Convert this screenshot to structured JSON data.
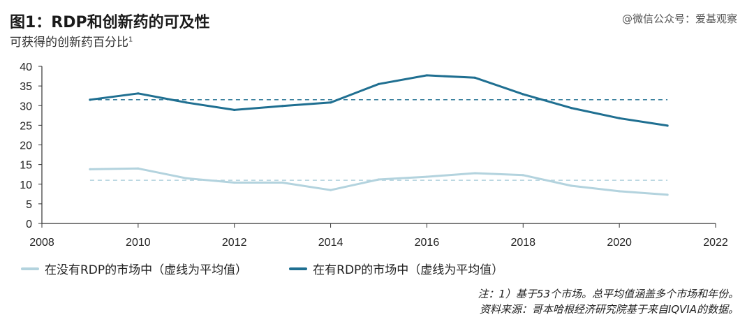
{
  "header": {
    "title": "图1：RDP和创新药的可及性",
    "subtitle": "可获得的创新药百分比",
    "subtitle_sup": "1",
    "watermark": "@微信公众号：爱基观察"
  },
  "notes": {
    "line1": "注：1）基于53个市场。总平均值涵盖多个市场和年份。",
    "line2": "资料来源：哥本哈根经济研究院基于来自IQVIA的数据。"
  },
  "chart_data": {
    "type": "line",
    "xlim": [
      2008,
      2022
    ],
    "ylim": [
      0,
      40
    ],
    "x_ticks": [
      2008,
      2010,
      2012,
      2014,
      2016,
      2018,
      2020,
      2022
    ],
    "y_ticks": [
      0,
      5,
      10,
      15,
      20,
      25,
      30,
      35,
      40
    ],
    "grid": false,
    "legend_position": "bottom",
    "series": [
      {
        "name": "在没有RDP的市场中（虚线为平均值）",
        "color": "#b3d3de",
        "x": [
          2009,
          2010,
          2011,
          2012,
          2013,
          2014,
          2015,
          2016,
          2017,
          2018,
          2019,
          2020,
          2021
        ],
        "y": [
          13.8,
          14.0,
          11.5,
          10.4,
          10.4,
          8.5,
          11.2,
          11.9,
          12.8,
          12.3,
          9.6,
          8.2,
          7.3
        ],
        "average": 11.0
      },
      {
        "name": "在有RDP的市场中（虚线为平均值）",
        "color": "#1f6f91",
        "x": [
          2009,
          2010,
          2011,
          2012,
          2013,
          2014,
          2015,
          2016,
          2017,
          2018,
          2019,
          2020,
          2021
        ],
        "y": [
          31.5,
          33.1,
          30.8,
          28.9,
          29.9,
          30.8,
          35.5,
          37.7,
          37.1,
          32.9,
          29.4,
          26.8,
          24.9
        ],
        "average": 31.5
      }
    ]
  }
}
